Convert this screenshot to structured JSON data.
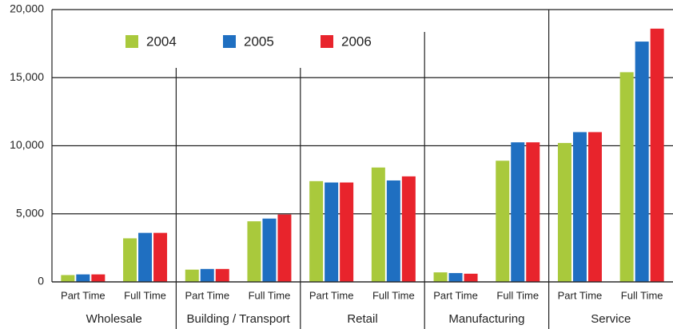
{
  "chart_data": {
    "type": "bar",
    "categories": [
      "Part Time",
      "Full Time",
      "Part Time",
      "Full Time",
      "Part Time",
      "Full Time",
      "Part Time",
      "Full Time",
      "Part Time",
      "Full Time"
    ],
    "groups": [
      "Wholesale",
      "Building / Transport",
      "Retail",
      "Manufacturing",
      "Service"
    ],
    "series": [
      {
        "name": "2004",
        "color": "#a9c93c",
        "values": [
          500,
          3200,
          900,
          4450,
          7400,
          8400,
          700,
          8900,
          10200,
          15400
        ]
      },
      {
        "name": "2005",
        "color": "#1f6fc1",
        "values": [
          550,
          3600,
          950,
          4650,
          7300,
          7450,
          650,
          10250,
          11000,
          17650
        ]
      },
      {
        "name": "2006",
        "color": "#e8242c",
        "values": [
          550,
          3600,
          950,
          4950,
          7300,
          7750,
          600,
          10250,
          11000,
          18600
        ]
      }
    ],
    "ylim": [
      0,
      20000
    ],
    "yticks": [
      0,
      {
        "value": 5000,
        "label": "5,000"
      },
      {
        "value": 10000,
        "label": "10,000"
      },
      {
        "value": 15000,
        "label": "15,000"
      },
      {
        "value": 20000,
        "label": "20,000"
      }
    ],
    "grid": true,
    "legend": "top"
  }
}
